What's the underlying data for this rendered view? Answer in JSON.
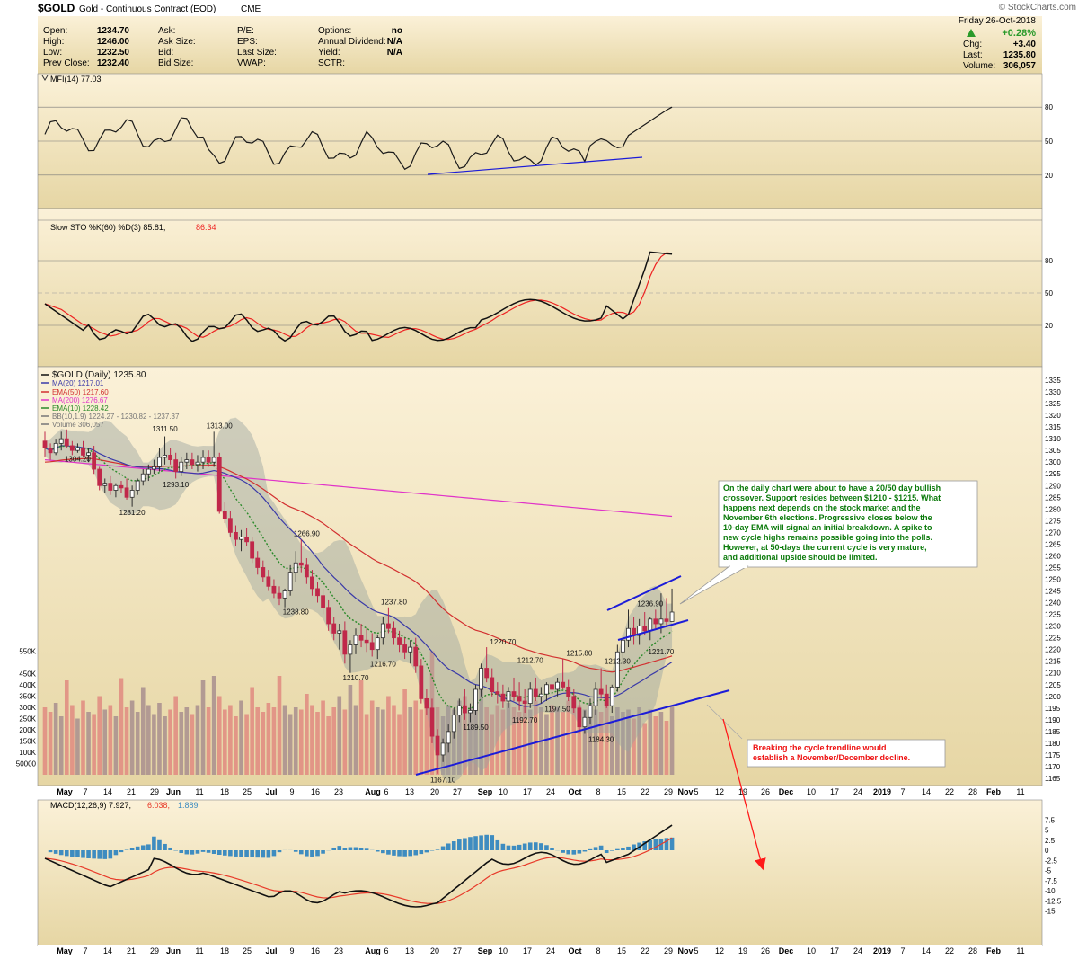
{
  "header": {
    "symbol": "$GOLD",
    "name": "Gold - Continuous Contract (EOD)",
    "exchange": "CME",
    "watermark": "© StockCharts.com",
    "date": "Friday  26-Oct-2018",
    "pct_change": "+0.28%",
    "chg_label": "Chg:",
    "chg_value": "+3.40",
    "last_label": "Last:",
    "last_value": "1235.80",
    "volume_label": "Volume:",
    "volume_value": "306,057"
  },
  "quote": {
    "open_label": "Open:",
    "open": "1234.70",
    "high_label": "High:",
    "high": "1246.00",
    "low_label": "Low:",
    "low": "1232.50",
    "prev_label": "Prev Close:",
    "prev": "1232.40",
    "ask_label": "Ask:",
    "ask_size_label": "Ask Size:",
    "bid_label": "Bid:",
    "bid_size_label": "Bid Size:",
    "pe_label": "P/E:",
    "eps_label": "EPS:",
    "last_size_label": "Last Size:",
    "vwap_label": "VWAP:",
    "options_label": "Options:",
    "options": "no",
    "dividend_label": "Annual Dividend:",
    "dividend": "N/A",
    "yield_label": "Yield:",
    "yield": "N/A",
    "sctr_label": "SCTR:"
  },
  "legends": {
    "mfi": "MFI(14) 77.03",
    "sto_prefix": "Slow STO %K(60) %D(3) 85.81,",
    "sto_d": " 86.34",
    "price_title": "$GOLD (Daily) 1235.80",
    "ma20": "MA(20) 1217.01",
    "ema50": "EMA(50) 1217.60",
    "ma200": "MA(200) 1276.67",
    "ema10": "EMA(10) 1228.42",
    "bb": "BB(10,1.9) 1224.27 - 1230.82 - 1237.37",
    "volume": "Volume 306,057",
    "macd_prefix": "MACD(12,26,9) 7.927,",
    "macd_signal": " 6.038,",
    "macd_hist": " 1.889"
  },
  "annotations": {
    "main_note": [
      "On the daily chart were about to have a 20/50 day bullish",
      "crossover. Support resides between $1210 - $1215. What",
      "happens next depends on the stock market and the",
      "November 6th elections. Progressive closes below the",
      "10-day EMA will signal an initial breakdown. A spike to",
      "new cycle highs remains possible going into the polls.",
      "However, at 50-days the current cycle is very mature,",
      "and additional upside should be limited."
    ],
    "warning_note": [
      "Breaking the cycle trendline would",
      "establish a November/December decline."
    ]
  },
  "colors": {
    "panel_bg_top": "#fbf1d8",
    "panel_bg_bottom": "#e4d39f",
    "candle_up": "#2e2e2e",
    "candle_down": "#c0284a",
    "ma20": "#3a3aa8",
    "ema50": "#d23030",
    "ma200": "#e032c8",
    "ema10": "#2a8a2a",
    "bb_fill": "#9aa4a0",
    "volume_up": "#a88e8e",
    "volume_down": "#e08a80",
    "trendline": "#1c1cd8",
    "arrow": "#ff1a1a",
    "note_bg": "#ffffff",
    "note_text": "#0a7a0a",
    "warn_text": "#ee1111",
    "macd_line": "#111111",
    "macd_signal": "#e83a2a",
    "macd_hist": "#3e8cc0",
    "mfi_line": "#1a1a1a",
    "sto_k": "#111111",
    "sto_d": "#ee2222"
  },
  "chart_data": {
    "type": "candlestick",
    "title": "$GOLD (Daily) 1235.80",
    "x_labels": [
      "May",
      "7",
      "14",
      "21",
      "29",
      "Jun",
      "11",
      "18",
      "25",
      "Jul",
      "9",
      "16",
      "23",
      "Aug",
      "6",
      "13",
      "20",
      "27",
      "Sep",
      "10",
      "17",
      "24",
      "Oct",
      "8",
      "15",
      "22",
      "29",
      "Nov",
      "5",
      "12",
      "19",
      "26",
      "Dec",
      "10",
      "17",
      "24",
      "2019",
      "7",
      "14",
      "22",
      "28",
      "Feb",
      "11"
    ],
    "price_axis": {
      "min": 1165,
      "max": 1335,
      "step": 5
    },
    "volume_ticks": [
      "50000",
      "100K",
      "150K",
      "200K",
      "250K",
      "300K",
      "350K",
      "400K",
      "450K",
      "550K"
    ],
    "price_labels": [
      {
        "text": "1304.20",
        "day": 6,
        "price": 1304.2
      },
      {
        "text": "1311.50",
        "day": 22,
        "price": 1311.5
      },
      {
        "text": "1313.00",
        "day": 32,
        "price": 1313.0
      },
      {
        "text": "1293.10",
        "day": 24,
        "price": 1293.1
      },
      {
        "text": "1281.20",
        "day": 16,
        "price": 1281.2
      },
      {
        "text": "1266.90",
        "day": 48,
        "price": 1266.9
      },
      {
        "text": "1238.80",
        "day": 46,
        "price": 1238.8
      },
      {
        "text": "1237.80",
        "day": 64,
        "price": 1237.8
      },
      {
        "text": "1216.70",
        "day": 62,
        "price": 1216.7
      },
      {
        "text": "1210.70",
        "day": 57,
        "price": 1210.7
      },
      {
        "text": "1220.70",
        "day": 84,
        "price": 1220.7
      },
      {
        "text": "1212.70",
        "day": 89,
        "price": 1212.7
      },
      {
        "text": "1215.80",
        "day": 98,
        "price": 1215.8
      },
      {
        "text": "1212.30",
        "day": 105,
        "price": 1212.3
      },
      {
        "text": "1197.50",
        "day": 94,
        "price": 1197.5
      },
      {
        "text": "1192.70",
        "day": 88,
        "price": 1192.7
      },
      {
        "text": "1189.50",
        "day": 79,
        "price": 1189.5
      },
      {
        "text": "1184.30",
        "day": 102,
        "price": 1184.3
      },
      {
        "text": "1167.10",
        "day": 73,
        "price": 1167.1
      },
      {
        "text": "1236.90",
        "day": 111,
        "price": 1236.9
      },
      {
        "text": "1221.70",
        "day": 113,
        "price": 1221.7
      }
    ],
    "candles": [
      [
        1309,
        1313,
        1302,
        1306
      ],
      [
        1306,
        1308,
        1301,
        1304
      ],
      [
        1304,
        1310,
        1303,
        1308
      ],
      [
        1308,
        1313,
        1305,
        1310
      ],
      [
        1310,
        1314,
        1306,
        1307
      ],
      [
        1307,
        1309,
        1303,
        1305
      ],
      [
        1305,
        1308,
        1304,
        1306
      ],
      [
        1306,
        1309,
        1302,
        1303
      ],
      [
        1303,
        1306,
        1300,
        1304
      ],
      [
        1304,
        1307,
        1295,
        1297
      ],
      [
        1297,
        1298,
        1288,
        1290
      ],
      [
        1290,
        1293,
        1287,
        1291
      ],
      [
        1291,
        1294,
        1286,
        1288
      ],
      [
        1288,
        1291,
        1285,
        1290
      ],
      [
        1290,
        1292,
        1287,
        1289
      ],
      [
        1289,
        1293,
        1284,
        1285
      ],
      [
        1285,
        1290,
        1281,
        1288
      ],
      [
        1288,
        1293,
        1286,
        1292
      ],
      [
        1292,
        1297,
        1290,
        1295
      ],
      [
        1295,
        1299,
        1292,
        1297
      ],
      [
        1297,
        1301,
        1295,
        1298
      ],
      [
        1298,
        1306,
        1296,
        1302
      ],
      [
        1302,
        1311,
        1299,
        1303
      ],
      [
        1303,
        1306,
        1299,
        1301
      ],
      [
        1301,
        1304,
        1293,
        1296
      ],
      [
        1296,
        1302,
        1294,
        1300
      ],
      [
        1300,
        1304,
        1297,
        1301
      ],
      [
        1301,
        1304,
        1297,
        1299
      ],
      [
        1299,
        1303,
        1296,
        1300
      ],
      [
        1300,
        1305,
        1297,
        1302
      ],
      [
        1302,
        1305,
        1298,
        1300
      ],
      [
        1300,
        1313,
        1298,
        1302
      ],
      [
        1302,
        1304,
        1278,
        1279
      ],
      [
        1279,
        1283,
        1274,
        1276
      ],
      [
        1276,
        1279,
        1268,
        1270
      ],
      [
        1270,
        1273,
        1264,
        1267
      ],
      [
        1267,
        1271,
        1262,
        1268
      ],
      [
        1268,
        1272,
        1264,
        1266
      ],
      [
        1266,
        1268,
        1257,
        1259
      ],
      [
        1259,
        1262,
        1252,
        1255
      ],
      [
        1255,
        1258,
        1249,
        1251
      ],
      [
        1251,
        1254,
        1245,
        1247
      ],
      [
        1247,
        1250,
        1242,
        1244
      ],
      [
        1244,
        1247,
        1239,
        1242
      ],
      [
        1242,
        1246,
        1238,
        1245
      ],
      [
        1245,
        1256,
        1243,
        1253
      ],
      [
        1253,
        1262,
        1249,
        1257
      ],
      [
        1257,
        1267,
        1253,
        1256
      ],
      [
        1256,
        1259,
        1248,
        1251
      ],
      [
        1251,
        1254,
        1243,
        1246
      ],
      [
        1246,
        1249,
        1240,
        1243
      ],
      [
        1243,
        1246,
        1235,
        1238
      ],
      [
        1238,
        1241,
        1228,
        1231
      ],
      [
        1231,
        1234,
        1224,
        1227
      ],
      [
        1227,
        1231,
        1220,
        1228
      ],
      [
        1228,
        1232,
        1214,
        1218
      ],
      [
        1218,
        1224,
        1210,
        1222
      ],
      [
        1222,
        1229,
        1218,
        1226
      ],
      [
        1226,
        1231,
        1221,
        1224
      ],
      [
        1224,
        1229,
        1219,
        1223
      ],
      [
        1223,
        1227,
        1217,
        1220
      ],
      [
        1220,
        1226,
        1216,
        1225
      ],
      [
        1225,
        1234,
        1222,
        1231
      ],
      [
        1231,
        1238,
        1227,
        1229
      ],
      [
        1229,
        1232,
        1222,
        1225
      ],
      [
        1225,
        1228,
        1219,
        1222
      ],
      [
        1222,
        1225,
        1216,
        1219
      ],
      [
        1219,
        1224,
        1214,
        1221
      ],
      [
        1221,
        1225,
        1210,
        1213
      ],
      [
        1213,
        1216,
        1197,
        1199
      ],
      [
        1199,
        1203,
        1192,
        1195
      ],
      [
        1195,
        1199,
        1180,
        1183
      ],
      [
        1183,
        1186,
        1167,
        1175
      ],
      [
        1175,
        1182,
        1172,
        1180
      ],
      [
        1180,
        1188,
        1176,
        1185
      ],
      [
        1185,
        1195,
        1182,
        1192
      ],
      [
        1192,
        1199,
        1189,
        1196
      ],
      [
        1196,
        1203,
        1190,
        1193
      ],
      [
        1193,
        1197,
        1189,
        1194
      ],
      [
        1194,
        1205,
        1192,
        1203
      ],
      [
        1203,
        1214,
        1200,
        1212
      ],
      [
        1212,
        1221,
        1206,
        1208
      ],
      [
        1208,
        1212,
        1200,
        1202
      ],
      [
        1202,
        1206,
        1197,
        1201
      ],
      [
        1201,
        1205,
        1195,
        1198
      ],
      [
        1198,
        1204,
        1195,
        1202
      ],
      [
        1202,
        1208,
        1198,
        1200
      ],
      [
        1200,
        1206,
        1194,
        1198
      ],
      [
        1198,
        1203,
        1193,
        1197
      ],
      [
        1197,
        1206,
        1195,
        1203
      ],
      [
        1203,
        1208,
        1198,
        1200
      ],
      [
        1200,
        1204,
        1197,
        1201
      ],
      [
        1201,
        1206,
        1198,
        1205
      ],
      [
        1205,
        1209,
        1201,
        1203
      ],
      [
        1203,
        1208,
        1200,
        1206
      ],
      [
        1206,
        1216,
        1203,
        1204
      ],
      [
        1204,
        1207,
        1198,
        1200
      ],
      [
        1200,
        1203,
        1193,
        1195
      ],
      [
        1195,
        1198,
        1184,
        1187
      ],
      [
        1187,
        1194,
        1184,
        1191
      ],
      [
        1191,
        1199,
        1188,
        1196
      ],
      [
        1196,
        1206,
        1192,
        1203
      ],
      [
        1203,
        1212,
        1199,
        1201
      ],
      [
        1201,
        1205,
        1195,
        1196
      ],
      [
        1196,
        1205,
        1193,
        1204
      ],
      [
        1204,
        1222,
        1202,
        1219
      ],
      [
        1219,
        1226,
        1214,
        1224
      ],
      [
        1224,
        1237,
        1221,
        1229
      ],
      [
        1229,
        1234,
        1222,
        1226
      ],
      [
        1226,
        1233,
        1222,
        1230
      ],
      [
        1230,
        1236,
        1226,
        1228
      ],
      [
        1228,
        1234,
        1224,
        1233
      ],
      [
        1233,
        1237,
        1229,
        1231
      ],
      [
        1231,
        1244,
        1227,
        1233
      ],
      [
        1233,
        1242,
        1230,
        1232
      ],
      [
        1232,
        1246,
        1232,
        1236
      ]
    ],
    "volume_k": [
      300,
      280,
      320,
      260,
      420,
      310,
      250,
      330,
      280,
      270,
      350,
      290,
      310,
      260,
      430,
      300,
      330,
      280,
      390,
      310,
      270,
      320,
      260,
      290,
      350,
      280,
      300,
      270,
      310,
      420,
      300,
      440,
      350,
      290,
      310,
      260,
      330,
      270,
      390,
      300,
      280,
      320,
      300,
      440,
      310,
      270,
      300,
      290,
      360,
      310,
      280,
      330,
      260,
      300,
      350,
      290,
      400,
      310,
      420,
      270,
      330,
      300,
      290,
      350,
      310,
      270,
      380,
      300,
      330,
      290,
      340,
      550,
      300,
      260,
      310,
      290,
      330,
      350,
      300,
      320,
      380,
      300,
      270,
      310,
      290,
      320,
      300,
      280,
      310,
      290,
      330,
      300,
      270,
      310,
      300,
      280,
      330,
      300,
      310,
      290,
      320,
      290,
      280,
      310,
      260,
      300,
      280,
      290,
      250,
      300,
      230,
      290,
      260,
      280,
      240,
      306
    ]
  }
}
